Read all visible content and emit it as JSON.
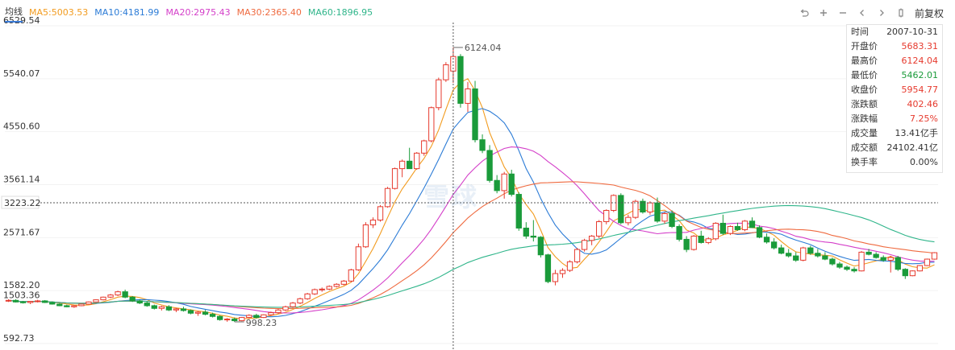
{
  "header": {
    "indicator_label": "均线",
    "ma": [
      {
        "label": "MA5:5003.53",
        "color": "#f29b1e"
      },
      {
        "label": "MA10:4181.99",
        "color": "#2b7bd6"
      },
      {
        "label": "MA20:2975.43",
        "color": "#d43fc9"
      },
      {
        "label": "MA30:2365.40",
        "color": "#ef6a3f"
      },
      {
        "label": "MA60:1896.95",
        "color": "#2fb58a"
      }
    ]
  },
  "toolbar": {
    "icons": [
      "undo-icon",
      "zoom-in-icon",
      "zoom-out-icon",
      "scroll-left-icon",
      "scroll-right-icon",
      "settings-icon"
    ],
    "adjust_label": "前复权"
  },
  "watermark": "雪球",
  "info_panel": {
    "rows": [
      {
        "label": "时间",
        "value": "2007-10-31",
        "color": "#333333"
      },
      {
        "label": "开盘价",
        "value": "5683.31",
        "color": "#e63a2e"
      },
      {
        "label": "最高价",
        "value": "6124.04",
        "color": "#e63a2e"
      },
      {
        "label": "最低价",
        "value": "5462.01",
        "color": "#1a9b3a"
      },
      {
        "label": "收盘价",
        "value": "5954.77",
        "color": "#e63a2e"
      },
      {
        "label": "涨跌额",
        "value": "402.46",
        "color": "#e63a2e"
      },
      {
        "label": "涨跌幅",
        "value": "7.25%",
        "color": "#e63a2e"
      },
      {
        "label": "成交量",
        "value": "13.41亿手",
        "color": "#333333"
      },
      {
        "label": "成交额",
        "value": "24102.41亿",
        "color": "#333333"
      },
      {
        "label": "换手率",
        "value": "0.00%",
        "color": "#333333"
      }
    ]
  },
  "colors": {
    "up": "#e63a2e",
    "down": "#1a9b3a",
    "up_fill": "#ffffff",
    "crosshair": "#555555"
  },
  "chart_data": {
    "type": "candlestick",
    "ylim": [
      592.73,
      6529.54
    ],
    "y_ticks": [
      "6529.54",
      "5540.07",
      "4550.60",
      "3561.14",
      "2571.67",
      "1582.20",
      "592.73"
    ],
    "crosshair_price": "3223.22",
    "left_price_tag": "1503.36",
    "max_label": "6124.04",
    "min_label": "998.23",
    "candles": [
      [
        1390,
        1420,
        1370,
        1400
      ],
      [
        1400,
        1420,
        1360,
        1370
      ],
      [
        1370,
        1390,
        1340,
        1360
      ],
      [
        1360,
        1385,
        1330,
        1380
      ],
      [
        1380,
        1410,
        1360,
        1390
      ],
      [
        1390,
        1405,
        1350,
        1360
      ],
      [
        1360,
        1380,
        1320,
        1330
      ],
      [
        1330,
        1345,
        1290,
        1300
      ],
      [
        1300,
        1320,
        1270,
        1280
      ],
      [
        1280,
        1310,
        1260,
        1300
      ],
      [
        1300,
        1340,
        1290,
        1330
      ],
      [
        1330,
        1380,
        1320,
        1370
      ],
      [
        1370,
        1420,
        1360,
        1410
      ],
      [
        1410,
        1470,
        1400,
        1460
      ],
      [
        1460,
        1520,
        1440,
        1500
      ],
      [
        1500,
        1580,
        1480,
        1560
      ],
      [
        1560,
        1600,
        1440,
        1460
      ],
      [
        1460,
        1480,
        1370,
        1390
      ],
      [
        1390,
        1420,
        1330,
        1350
      ],
      [
        1350,
        1380,
        1280,
        1300
      ],
      [
        1300,
        1320,
        1230,
        1250
      ],
      [
        1250,
        1300,
        1210,
        1280
      ],
      [
        1280,
        1310,
        1200,
        1220
      ],
      [
        1220,
        1260,
        1180,
        1240
      ],
      [
        1240,
        1280,
        1190,
        1210
      ],
      [
        1210,
        1230,
        1140,
        1160
      ],
      [
        1160,
        1200,
        1110,
        1180
      ],
      [
        1180,
        1220,
        1120,
        1140
      ],
      [
        1140,
        1170,
        1080,
        1100
      ],
      [
        1100,
        1120,
        1020,
        1040
      ],
      [
        1040,
        1070,
        1000,
        1050
      ],
      [
        1050,
        1080,
        998,
        1020
      ],
      [
        1020,
        1090,
        1010,
        1080
      ],
      [
        1080,
        1140,
        1060,
        1120
      ],
      [
        1120,
        1150,
        1060,
        1080
      ],
      [
        1080,
        1140,
        1070,
        1130
      ],
      [
        1130,
        1190,
        1110,
        1170
      ],
      [
        1170,
        1240,
        1150,
        1220
      ],
      [
        1220,
        1300,
        1200,
        1280
      ],
      [
        1280,
        1370,
        1260,
        1350
      ],
      [
        1350,
        1450,
        1330,
        1430
      ],
      [
        1430,
        1540,
        1410,
        1520
      ],
      [
        1520,
        1620,
        1500,
        1600
      ],
      [
        1600,
        1640,
        1560,
        1610
      ],
      [
        1610,
        1680,
        1590,
        1660
      ],
      [
        1660,
        1720,
        1640,
        1700
      ],
      [
        1700,
        1780,
        1680,
        1760
      ],
      [
        1760,
        1990,
        1740,
        1970
      ],
      [
        1970,
        2460,
        1950,
        2400
      ],
      [
        2400,
        2860,
        2380,
        2810
      ],
      [
        2810,
        2950,
        2750,
        2900
      ],
      [
        2900,
        3180,
        2870,
        3150
      ],
      [
        3150,
        3520,
        3130,
        3490
      ],
      [
        3490,
        3880,
        3470,
        3860
      ],
      [
        3860,
        4030,
        3700,
        4000
      ],
      [
        4000,
        4250,
        3880,
        3860
      ],
      [
        3860,
        4170,
        3840,
        4150
      ],
      [
        4150,
        4400,
        4100,
        4380
      ],
      [
        4380,
        5020,
        4350,
        5000
      ],
      [
        5000,
        5560,
        4950,
        5520
      ],
      [
        5520,
        5850,
        5480,
        5800
      ],
      [
        5683,
        6124,
        5462,
        5955
      ],
      [
        5955,
        6000,
        5000,
        5080
      ],
      [
        5080,
        5480,
        4920,
        5350
      ],
      [
        5350,
        5500,
        4350,
        4400
      ],
      [
        4400,
        4500,
        4150,
        4200
      ],
      [
        4200,
        4300,
        3600,
        3640
      ],
      [
        3640,
        3740,
        3400,
        3450
      ],
      [
        3450,
        3800,
        3300,
        3760
      ],
      [
        3760,
        3840,
        3340,
        3380
      ],
      [
        3380,
        3420,
        2700,
        2750
      ],
      [
        2750,
        2860,
        2550,
        2600
      ],
      [
        2600,
        2900,
        2500,
        2580
      ],
      [
        2580,
        2600,
        2200,
        2250
      ],
      [
        2250,
        2270,
        1720,
        1750
      ],
      [
        1750,
        1970,
        1680,
        1900
      ],
      [
        1900,
        2000,
        1820,
        1960
      ],
      [
        1960,
        2150,
        1930,
        2120
      ],
      [
        2120,
        2380,
        2090,
        2350
      ],
      [
        2350,
        2550,
        2310,
        2520
      ],
      [
        2520,
        2620,
        2430,
        2600
      ],
      [
        2600,
        2900,
        2560,
        2870
      ],
      [
        2870,
        3100,
        2820,
        3080
      ],
      [
        3080,
        3380,
        3050,
        3360
      ],
      [
        3360,
        3400,
        2820,
        2850
      ],
      [
        2850,
        3000,
        2800,
        2950
      ],
      [
        2950,
        3280,
        2920,
        3250
      ],
      [
        3250,
        3300,
        3020,
        3050
      ],
      [
        3050,
        3250,
        3000,
        3220
      ],
      [
        3220,
        3320,
        2850,
        2880
      ],
      [
        2880,
        3050,
        2830,
        3020
      ],
      [
        3020,
        3080,
        2750,
        2780
      ],
      [
        2780,
        2820,
        2500,
        2540
      ],
      [
        2540,
        2600,
        2300,
        2350
      ],
      [
        2350,
        2620,
        2330,
        2600
      ],
      [
        2600,
        2700,
        2460,
        2480
      ],
      [
        2480,
        2580,
        2450,
        2550
      ],
      [
        2550,
        2860,
        2520,
        2840
      ],
      [
        2840,
        3000,
        2620,
        2650
      ],
      [
        2650,
        2800,
        2620,
        2780
      ],
      [
        2780,
        2850,
        2700,
        2720
      ],
      [
        2720,
        2900,
        2690,
        2880
      ],
      [
        2880,
        2950,
        2750,
        2760
      ],
      [
        2760,
        2800,
        2560,
        2580
      ],
      [
        2580,
        2650,
        2460,
        2490
      ],
      [
        2490,
        2560,
        2350,
        2380
      ],
      [
        2380,
        2440,
        2260,
        2280
      ],
      [
        2280,
        2360,
        2200,
        2230
      ],
      [
        2230,
        2300,
        2120,
        2150
      ],
      [
        2150,
        2400,
        2130,
        2380
      ],
      [
        2380,
        2420,
        2250,
        2280
      ],
      [
        2280,
        2360,
        2200,
        2230
      ],
      [
        2230,
        2300,
        2150,
        2170
      ],
      [
        2170,
        2200,
        2050,
        2080
      ],
      [
        2080,
        2120,
        1990,
        2020
      ],
      [
        2020,
        2050,
        1950,
        1980
      ],
      [
        1980,
        2020,
        1920,
        1950
      ],
      [
        1950,
        2320,
        1940,
        2300
      ],
      [
        2300,
        2360,
        2240,
        2260
      ],
      [
        2260,
        2300,
        2180,
        2200
      ],
      [
        2200,
        2240,
        2120,
        2150
      ],
      [
        2150,
        2230,
        1920,
        2200
      ],
      [
        2200,
        2230,
        1950,
        1980
      ],
      [
        1980,
        2000,
        1800,
        1860
      ],
      [
        1860,
        1960,
        1850,
        1950
      ],
      [
        1950,
        2060,
        1940,
        2050
      ],
      [
        2050,
        2180,
        2040,
        2170
      ],
      [
        2170,
        2300,
        2160,
        2290
      ]
    ]
  }
}
